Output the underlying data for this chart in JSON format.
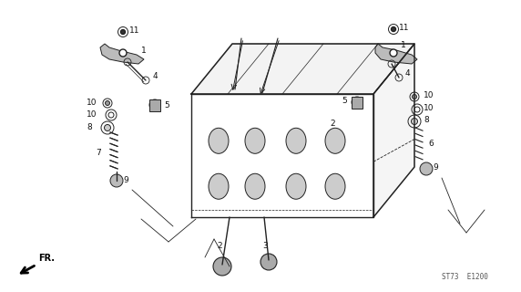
{
  "title": "",
  "bg_color": "#ffffff",
  "fig_width": 5.72,
  "fig_height": 3.2,
  "dpi": 100,
  "part_color": "#333333",
  "line_color": "#222222",
  "text_color": "#111111",
  "footer_text": "ST73  E1200",
  "fr_label": "FR.",
  "part_labels": {
    "11_left": [
      1.42,
      2.82,
      "11"
    ],
    "1_left": [
      1.52,
      2.62,
      "1"
    ],
    "4_left": [
      1.65,
      2.35,
      "4"
    ],
    "5_left": [
      1.78,
      2.02,
      "5"
    ],
    "10a_left": [
      1.1,
      2.05,
      "10"
    ],
    "10b_left": [
      1.1,
      1.92,
      "10"
    ],
    "8_left": [
      1.1,
      1.78,
      "8"
    ],
    "7_left": [
      1.18,
      1.52,
      "7"
    ],
    "9_left": [
      1.32,
      1.22,
      "9"
    ],
    "2_bot": [
      2.45,
      0.52,
      "2"
    ],
    "3_bot": [
      2.88,
      0.52,
      "3"
    ],
    "11_right": [
      4.32,
      2.88,
      "11"
    ],
    "1_right": [
      4.35,
      2.68,
      "1"
    ],
    "4_right": [
      4.35,
      2.42,
      "4"
    ],
    "5_right": [
      3.85,
      2.08,
      "5"
    ],
    "10a_right": [
      4.62,
      2.12,
      "10"
    ],
    "10b_right": [
      4.62,
      1.98,
      "10"
    ],
    "8_right": [
      4.52,
      1.88,
      "8"
    ],
    "6_right": [
      4.62,
      1.62,
      "6"
    ],
    "9_right": [
      4.68,
      1.35,
      "9"
    ],
    "2_right": [
      3.62,
      1.85,
      "2"
    ]
  }
}
